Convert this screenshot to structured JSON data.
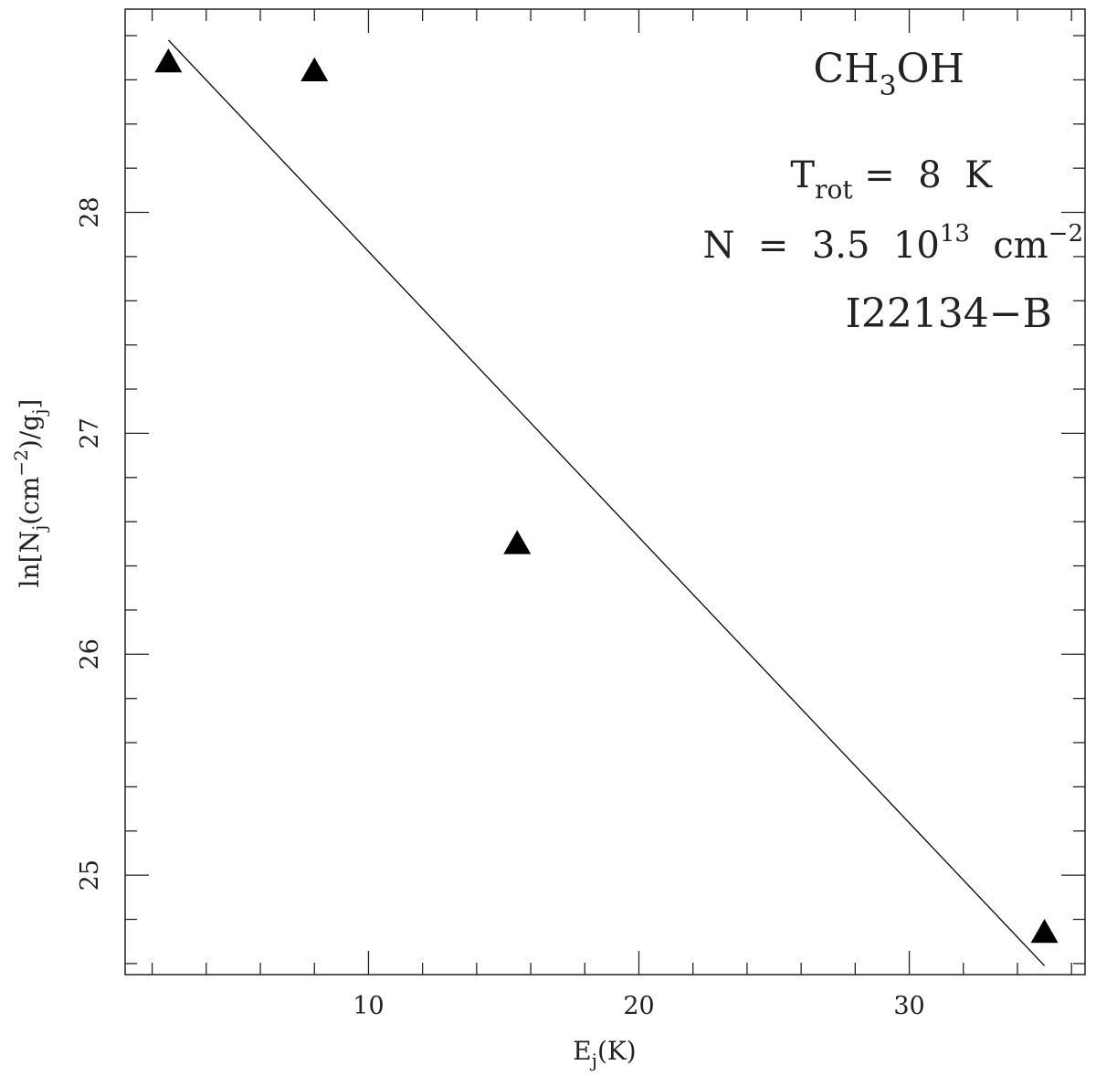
{
  "chart_data": {
    "type": "scatter",
    "xlabel": {
      "main": "E",
      "sub": "j",
      "rest": "(K)"
    },
    "ylabel": {
      "p1": "ln[N",
      "sub1": "j",
      "p2": "(cm",
      "sup": "−2",
      "p3": ")/g",
      "sub2": "j",
      "p4": "]"
    },
    "xlim": [
      1.0,
      36.5
    ],
    "ylim": [
      24.55,
      28.92
    ],
    "x_major_ticks": [
      10,
      20,
      30
    ],
    "x_minor_step": 2,
    "y_major_ticks": [
      25,
      26,
      27,
      28
    ],
    "y_minor_step": 0.2,
    "x_tick_labels": [
      "10",
      "20",
      "30"
    ],
    "y_tick_labels": [
      "25",
      "26",
      "27",
      "28"
    ],
    "points": [
      {
        "x": 2.6,
        "y": 28.68
      },
      {
        "x": 8.0,
        "y": 28.64
      },
      {
        "x": 15.5,
        "y": 26.5
      },
      {
        "x": 35.0,
        "y": 24.74
      }
    ],
    "fit_line": {
      "x": [
        2.6,
        35.0
      ],
      "y": [
        28.78,
        24.59
      ]
    },
    "marker": "filled-triangle",
    "grid": false
  },
  "annotations": {
    "molecule": {
      "p1": "CH",
      "sub": "3",
      "p2": "OH"
    },
    "trot": {
      "main": "T",
      "sub": "rot",
      "rest": " =  8  K"
    },
    "ncol": {
      "p1": "N  =  3.5  10",
      "sup": "13",
      "p2": "  cm",
      "sup2": "−2"
    },
    "source": "I22134−B"
  }
}
